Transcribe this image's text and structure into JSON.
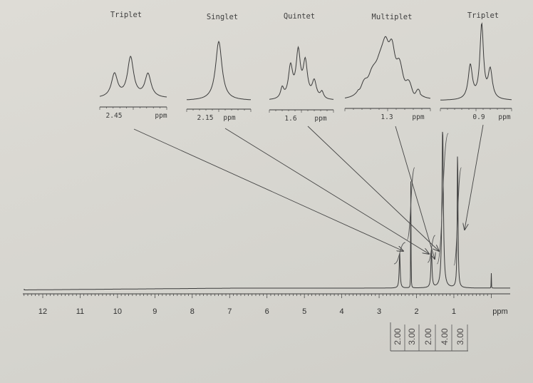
{
  "chart_data": {
    "type": "line",
    "title": "",
    "xlabel": "ppm",
    "xlim": [
      12.6,
      0
    ],
    "x_ticks": [
      "12",
      "11",
      "10",
      "9",
      "8",
      "7",
      "6",
      "5",
      "4",
      "3",
      "2",
      "1"
    ],
    "reversed_x": true,
    "peaks": [
      {
        "ppm": 2.45,
        "multiplicity": "Triplet",
        "integration": "2.00"
      },
      {
        "ppm": 2.15,
        "multiplicity": "Singlet",
        "integration": "3.00"
      },
      {
        "ppm": 1.6,
        "multiplicity": "Quintet",
        "integration": "2.00"
      },
      {
        "ppm": 1.3,
        "multiplicity": "Multiplet",
        "integration": "4.00"
      },
      {
        "ppm": 0.9,
        "multiplicity": "Triplet",
        "integration": "3.00"
      },
      {
        "ppm": 0.0,
        "multiplicity": "",
        "integration": ""
      }
    ],
    "insets": [
      {
        "title": "Triplet",
        "center": "2.45",
        "unit": "ppm"
      },
      {
        "title": "Singlet",
        "center": "2.15",
        "unit": "ppm"
      },
      {
        "title": "Quintet",
        "center": "1.6",
        "unit": "ppm"
      },
      {
        "title": "Multiplet",
        "center": "1.3",
        "unit": "ppm"
      },
      {
        "title": "Triplet",
        "center": "0.9",
        "unit": "ppm"
      }
    ],
    "integrations": [
      "2.00",
      "3.00",
      "2.00",
      "4.00",
      "3.00"
    ]
  },
  "colors": {
    "ink": "#3b3b3b",
    "paper": "#d9d8d3"
  }
}
